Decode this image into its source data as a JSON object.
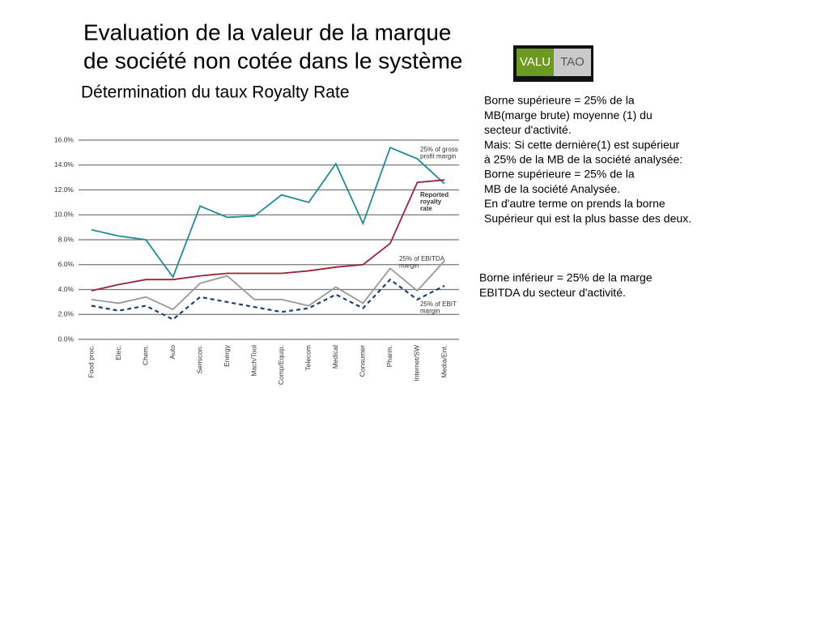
{
  "header": {
    "title_lines": [
      "Evaluation de la valeur de la marque",
      "de société non cotée dans le système"
    ],
    "subtitle": "Détermination du taux Royalty Rate",
    "logo": [
      "VALU",
      "TAO"
    ]
  },
  "notes": [
    [
      "Borne supérieure = 25% de la",
      "MB(marge brute) moyenne (1) du",
      "secteur d'activité.",
      "Mais: Si cette dernière(1) est supérieur",
      "à 25% de la MB de la société analysée:",
      "Borne supérieure = 25% de la",
      "MB de la société Analysée.",
      "En d'autre terme on prends la borne",
      "Supérieur qui est la plus basse des deux."
    ],
    [
      "Borne inférieur = 25% de la marge",
      "EBITDA du secteur d'activité."
    ]
  ],
  "chart_data": {
    "type": "line",
    "categories": [
      "Food proc.",
      "Elec.",
      "Chem.",
      "Auto",
      "Semicon.",
      "Energy",
      "Mach/Tool",
      "Comp/Equip.",
      "Telecom",
      "Medical",
      "Consumer",
      "Pharm.",
      "Internet/SW",
      "Media/Ent."
    ],
    "series": [
      {
        "name": [
          "25% of gross",
          "profit margin"
        ],
        "color": "#1f8a9c",
        "dashed": false,
        "values": [
          8.8,
          8.3,
          8.0,
          5.0,
          10.7,
          9.8,
          9.9,
          11.6,
          11.0,
          14.1,
          9.3,
          15.4,
          14.5,
          12.5
        ]
      },
      {
        "name": [
          "Reported",
          "royalty",
          "rate"
        ],
        "color": "#9b2335",
        "dashed": false,
        "values": [
          3.9,
          4.4,
          4.8,
          4.8,
          5.1,
          5.3,
          5.3,
          5.3,
          5.5,
          5.8,
          6.0,
          7.7,
          12.6,
          12.8
        ]
      },
      {
        "name": [
          "25% of EBITDA",
          "margin"
        ],
        "color": "#999999",
        "dashed": false,
        "values": [
          3.2,
          2.9,
          3.4,
          2.4,
          4.5,
          5.1,
          3.2,
          3.2,
          2.7,
          4.2,
          2.9,
          5.7,
          3.9,
          6.3
        ]
      },
      {
        "name": [
          "25% of EBIT",
          "margin"
        ],
        "color": "#1f3f73",
        "dashed": true,
        "values": [
          2.7,
          2.3,
          2.7,
          1.6,
          3.4,
          3.0,
          2.6,
          2.2,
          2.5,
          3.6,
          2.5,
          4.8,
          3.2,
          4.3
        ]
      }
    ],
    "ylim": [
      0,
      16
    ],
    "yticks": [
      {
        "value": 0,
        "label": "0.0%"
      },
      {
        "value": 2,
        "label": "2.0%"
      },
      {
        "value": 4,
        "label": "4.0%"
      },
      {
        "value": 6,
        "label": "6.0%"
      },
      {
        "value": 8,
        "label": "8.0%"
      },
      {
        "value": 10,
        "label": "10.0%"
      },
      {
        "value": 12,
        "label": "12.0%"
      },
      {
        "value": 14,
        "label": "14.0%"
      },
      {
        "value": 16,
        "label": "16.0%"
      }
    ],
    "grid": true
  }
}
